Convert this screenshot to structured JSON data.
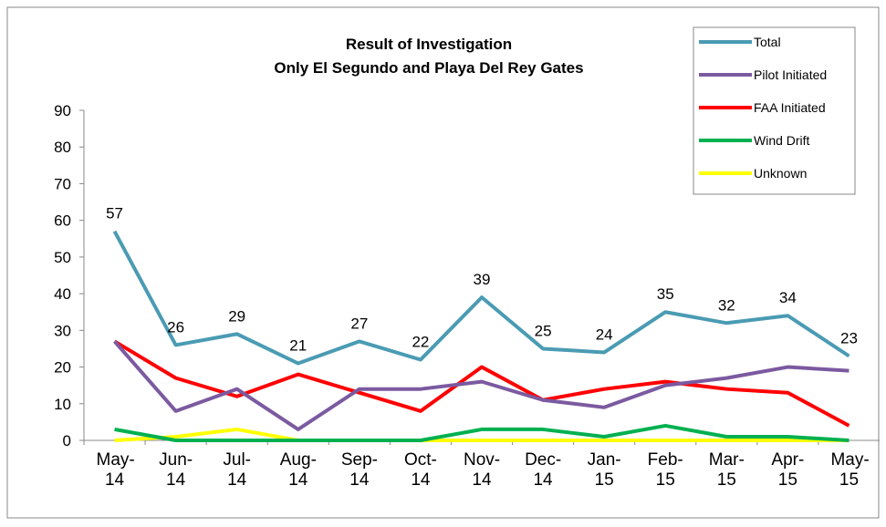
{
  "chart_data": {
    "type": "line",
    "title": [
      "Result of Investigation",
      "Only El Segundo and Playa Del Rey Gates"
    ],
    "categories": [
      "May-14",
      "Jun-14",
      "Jul-14",
      "Aug-14",
      "Sep-14",
      "Oct-14",
      "Nov-14",
      "Dec-14",
      "Jan-15",
      "Feb-15",
      "Mar-15",
      "Apr-15",
      "May-15"
    ],
    "series": [
      {
        "name": "Total",
        "color": "#4a9bb3",
        "values": [
          57,
          26,
          29,
          21,
          27,
          22,
          39,
          25,
          24,
          35,
          32,
          34,
          23
        ],
        "labels": true
      },
      {
        "name": "Pilot Initiated",
        "color": "#7b5aa0",
        "values": [
          27,
          8,
          14,
          3,
          14,
          14,
          16,
          11,
          9,
          15,
          17,
          20,
          19
        ]
      },
      {
        "name": "FAA Initiated",
        "color": "#ff0000",
        "values": [
          27,
          17,
          12,
          18,
          13,
          8,
          20,
          11,
          14,
          16,
          14,
          13,
          4
        ]
      },
      {
        "name": "Wind Drift",
        "color": "#00b050",
        "values": [
          3,
          0,
          0,
          0,
          0,
          0,
          3,
          3,
          1,
          4,
          1,
          1,
          0
        ]
      },
      {
        "name": "Unknown",
        "color": "#ffff00",
        "values": [
          0,
          1,
          3,
          0,
          0,
          0,
          0,
          0,
          0,
          0,
          0,
          0,
          0
        ]
      }
    ],
    "ylim": [
      0,
      90
    ],
    "yticks": [
      0,
      10,
      20,
      30,
      40,
      50,
      60,
      70,
      80,
      90
    ],
    "legend": "top-right"
  }
}
